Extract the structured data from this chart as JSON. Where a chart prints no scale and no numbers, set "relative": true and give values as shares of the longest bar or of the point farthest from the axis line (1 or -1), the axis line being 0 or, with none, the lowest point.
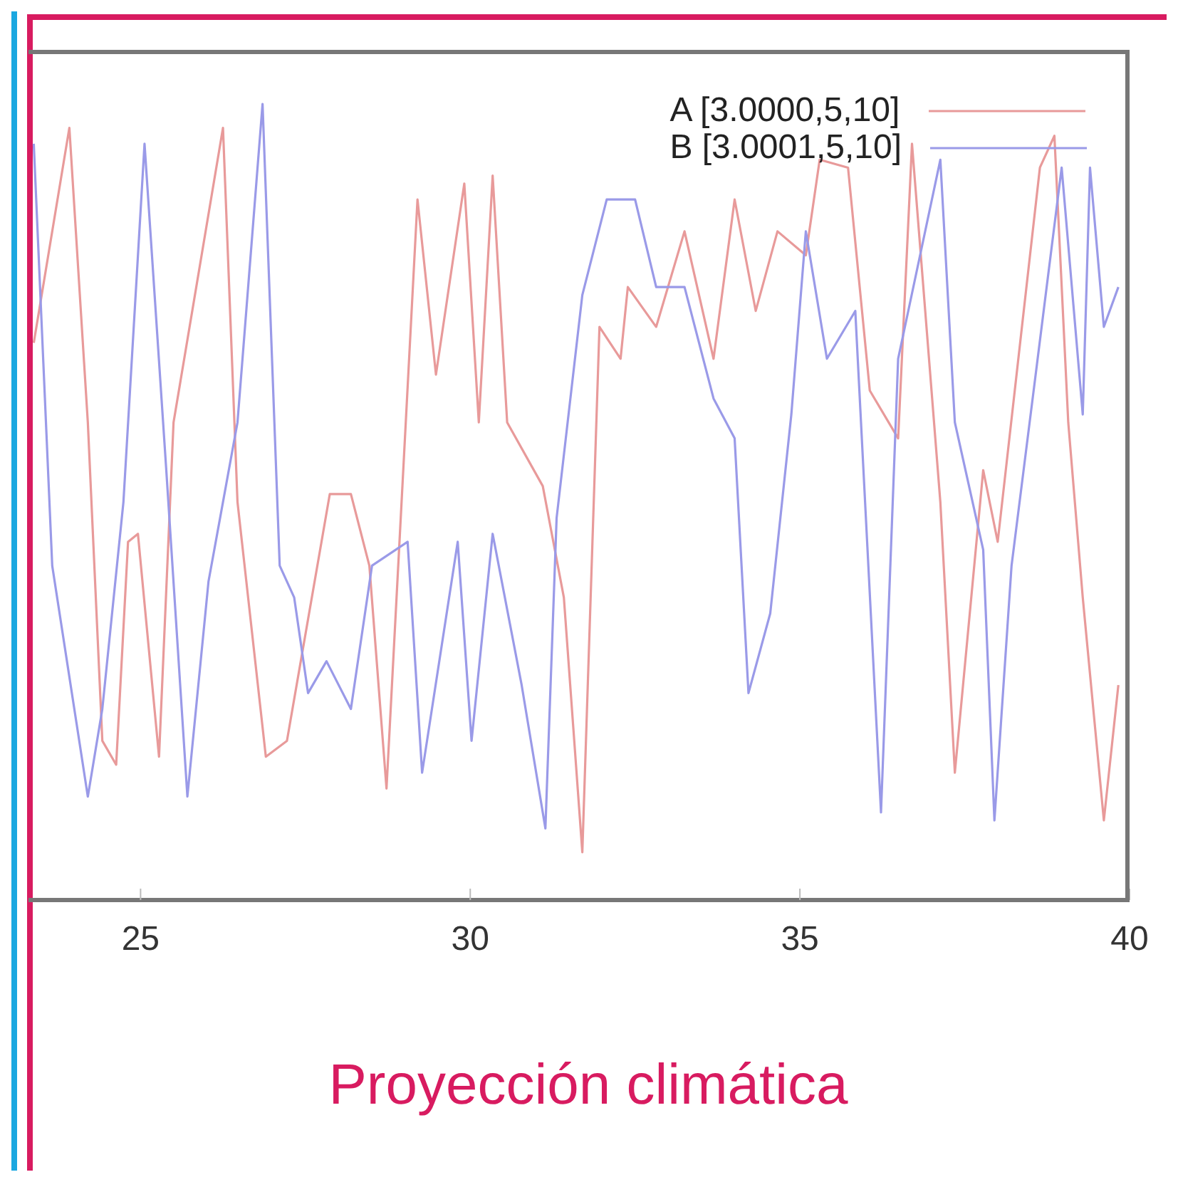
{
  "chart_data": {
    "type": "line",
    "title": "Proyección climática",
    "relative": true,
    "xlim": [
      23.3,
      40
    ],
    "xticks": [
      25,
      30,
      35,
      40
    ],
    "legend": "top right",
    "grid": false,
    "marker": "none",
    "line_style": "solid",
    "series": [
      {
        "name": "A [3.0000,5,10]",
        "color": "#e89a9a",
        "x": [
          23.38,
          23.92,
          24.2,
          24.42,
          24.63,
          24.81,
          24.96,
          25.28,
          25.5,
          26.25,
          26.47,
          26.9,
          27.22,
          27.87,
          28.19,
          28.47,
          28.73,
          29.2,
          29.48,
          29.91,
          30.13,
          30.34,
          30.56,
          31.1,
          31.42,
          31.7,
          31.96,
          32.28,
          32.39,
          32.82,
          33.25,
          33.69,
          34.01,
          34.33,
          34.66,
          35.09,
          35.3,
          35.73,
          36.06,
          36.49,
          36.7,
          37.13,
          37.35,
          37.78,
          38.0,
          38.64,
          38.86,
          39.07,
          39.29,
          39.61,
          39.83
        ],
        "values": [
          0.7,
          0.97,
          0.6,
          0.2,
          0.17,
          0.45,
          0.46,
          0.18,
          0.6,
          0.97,
          0.5,
          0.18,
          0.2,
          0.51,
          0.51,
          0.42,
          0.14,
          0.88,
          0.66,
          0.9,
          0.6,
          0.91,
          0.6,
          0.52,
          0.38,
          0.06,
          0.72,
          0.68,
          0.77,
          0.72,
          0.84,
          0.68,
          0.88,
          0.74,
          0.84,
          0.81,
          0.93,
          0.92,
          0.64,
          0.58,
          0.95,
          0.5,
          0.16,
          0.54,
          0.45,
          0.92,
          0.96,
          0.6,
          0.38,
          0.1,
          0.27
        ]
      },
      {
        "name": "B [3.0001,5,10]",
        "color": "#9a9ae8",
        "x": [
          23.38,
          23.66,
          24.2,
          24.42,
          24.74,
          25.06,
          25.39,
          25.71,
          26.03,
          26.47,
          26.85,
          27.11,
          27.33,
          27.54,
          27.82,
          28.19,
          28.51,
          29.05,
          29.27,
          29.81,
          30.02,
          30.34,
          30.78,
          31.14,
          31.31,
          31.7,
          32.07,
          32.5,
          32.82,
          33.25,
          33.69,
          34.01,
          34.22,
          34.55,
          34.87,
          35.09,
          35.41,
          35.84,
          36.23,
          36.49,
          37.13,
          37.35,
          37.78,
          37.95,
          38.21,
          38.53,
          38.97,
          39.29,
          39.4,
          39.61,
          39.83
        ],
        "values": [
          0.95,
          0.42,
          0.13,
          0.24,
          0.5,
          0.95,
          0.54,
          0.13,
          0.4,
          0.6,
          1,
          0.42,
          0.38,
          0.26,
          0.3,
          0.24,
          0.42,
          0.45,
          0.16,
          0.45,
          0.2,
          0.46,
          0.27,
          0.09,
          0.48,
          0.76,
          0.88,
          0.88,
          0.77,
          0.77,
          0.63,
          0.58,
          0.26,
          0.36,
          0.61,
          0.84,
          0.68,
          0.74,
          0.11,
          0.68,
          0.93,
          0.6,
          0.44,
          0.1,
          0.42,
          0.63,
          0.92,
          0.61,
          0.92,
          0.72,
          0.77
        ]
      }
    ]
  }
}
